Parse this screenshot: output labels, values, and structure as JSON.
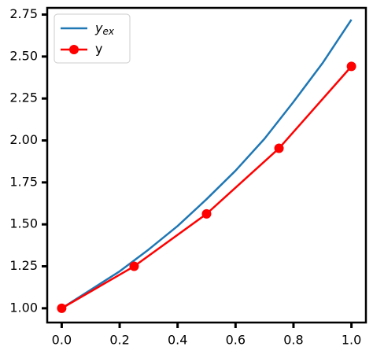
{
  "chart_data": {
    "type": "line",
    "series": [
      {
        "name": "y_ex",
        "color": "#1f77b4",
        "marker": false,
        "x": [
          0,
          0.1,
          0.2,
          0.3,
          0.4,
          0.5,
          0.6,
          0.7,
          0.8,
          0.9,
          1.0
        ],
        "values": [
          1.0,
          1.11,
          1.22,
          1.35,
          1.49,
          1.65,
          1.82,
          2.01,
          2.23,
          2.46,
          2.72
        ]
      },
      {
        "name": "y",
        "color": "#ff0000",
        "marker": true,
        "x": [
          0,
          0.25,
          0.5,
          0.75,
          1.0
        ],
        "values": [
          1.0,
          1.25,
          1.5625,
          1.953125,
          2.44140625
        ]
      }
    ],
    "xlim": [
      -0.05,
      1.05
    ],
    "ylim": [
      0.915,
      2.79
    ],
    "xticks": [
      {
        "value": 0,
        "label": "0.0"
      },
      0.2,
      0.4,
      0.6,
      0.8,
      {
        "value": 1,
        "label": "1.0"
      }
    ],
    "yticks": [
      {
        "value": 1,
        "label": "1.00"
      },
      1.25,
      {
        "value": 1.5,
        "label": "1.50"
      },
      1.75,
      {
        "value": 2,
        "label": "2.00"
      },
      2.25,
      {
        "value": 2.5,
        "label": "2.50"
      },
      2.75
    ],
    "legend": "upper left",
    "grid": false
  }
}
